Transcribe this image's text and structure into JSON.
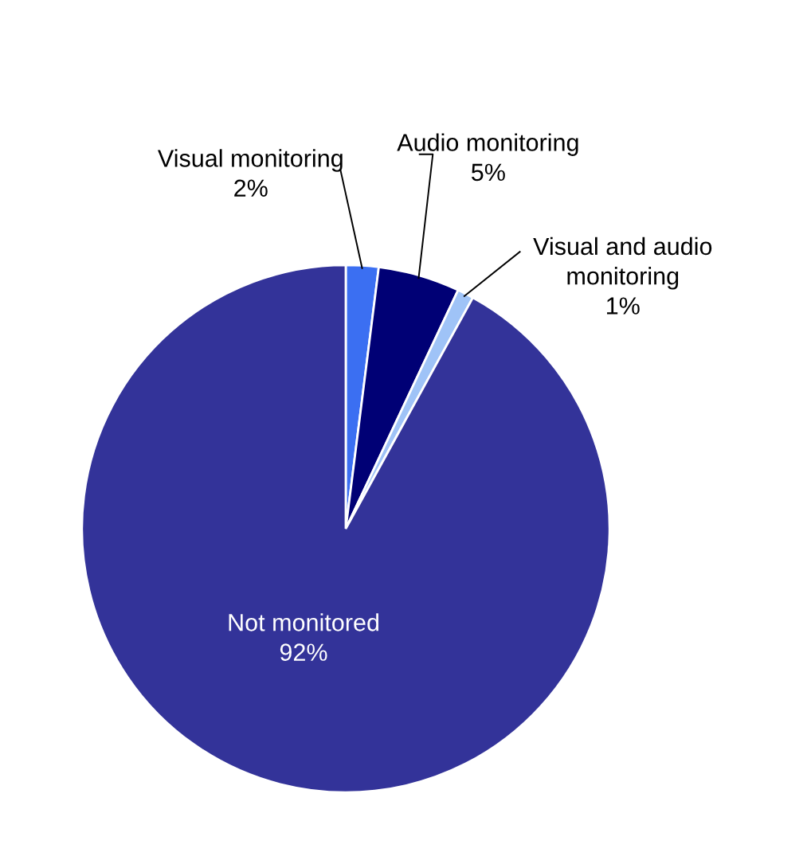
{
  "chart_data": {
    "type": "pie",
    "categories": [
      "Visual monitoring",
      "Audio monitoring",
      "Visual and audio monitoring",
      "Not monitored"
    ],
    "values": [
      2,
      5,
      1,
      92
    ],
    "value_labels": [
      "2%",
      "5%",
      "1%",
      "92%"
    ],
    "colors": [
      "#3b6ff2",
      "#000075",
      "#9fc3f7",
      "#333399"
    ]
  }
}
